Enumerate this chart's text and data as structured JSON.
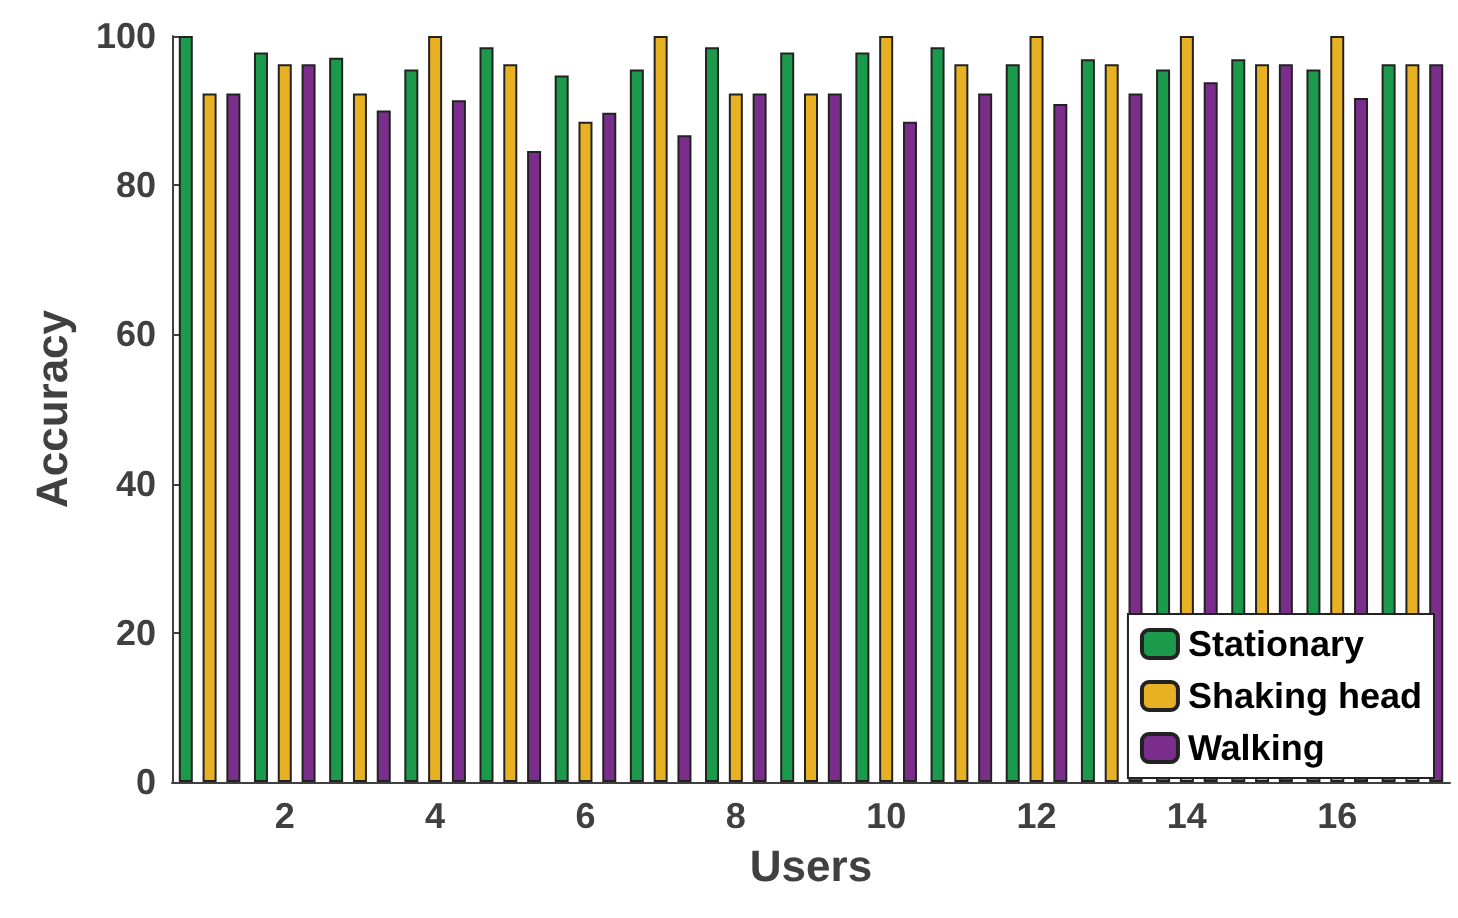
{
  "chart_data": {
    "type": "bar",
    "xlabel": "Users",
    "ylabel": "Accuracy",
    "categories": [
      null,
      "2",
      null,
      "4",
      null,
      "6",
      null,
      "8",
      null,
      "10",
      null,
      "12",
      null,
      "14",
      null,
      "16",
      null
    ],
    "series": [
      {
        "name": "Stationary",
        "color": "#1c9a4b",
        "values": [
          100,
          97.8,
          97.1,
          95.5,
          98.5,
          94.7,
          95.5,
          98.5,
          97.8,
          97.8,
          98.5,
          96.2,
          96.9,
          95.5,
          96.9,
          95.5,
          96.2
        ]
      },
      {
        "name": "Shaking head",
        "color": "#e8b023",
        "values": [
          92.3,
          96.2,
          92.3,
          100,
          96.2,
          88.5,
          100,
          92.3,
          92.3,
          100,
          96.2,
          100,
          96.2,
          100,
          96.2,
          100,
          96.2
        ]
      },
      {
        "name": "Walking",
        "color": "#7b2d8c",
        "values": [
          92.3,
          96.2,
          90,
          91.4,
          84.6,
          89.7,
          86.7,
          92.3,
          92.3,
          88.5,
          92.3,
          90.9,
          92.3,
          93.8,
          96.2,
          91.7,
          96.2
        ]
      }
    ],
    "ylim": [
      0,
      100
    ],
    "yticks": [
      0,
      20,
      40,
      60,
      80,
      100
    ],
    "grid": false,
    "legend": "bottom right"
  }
}
